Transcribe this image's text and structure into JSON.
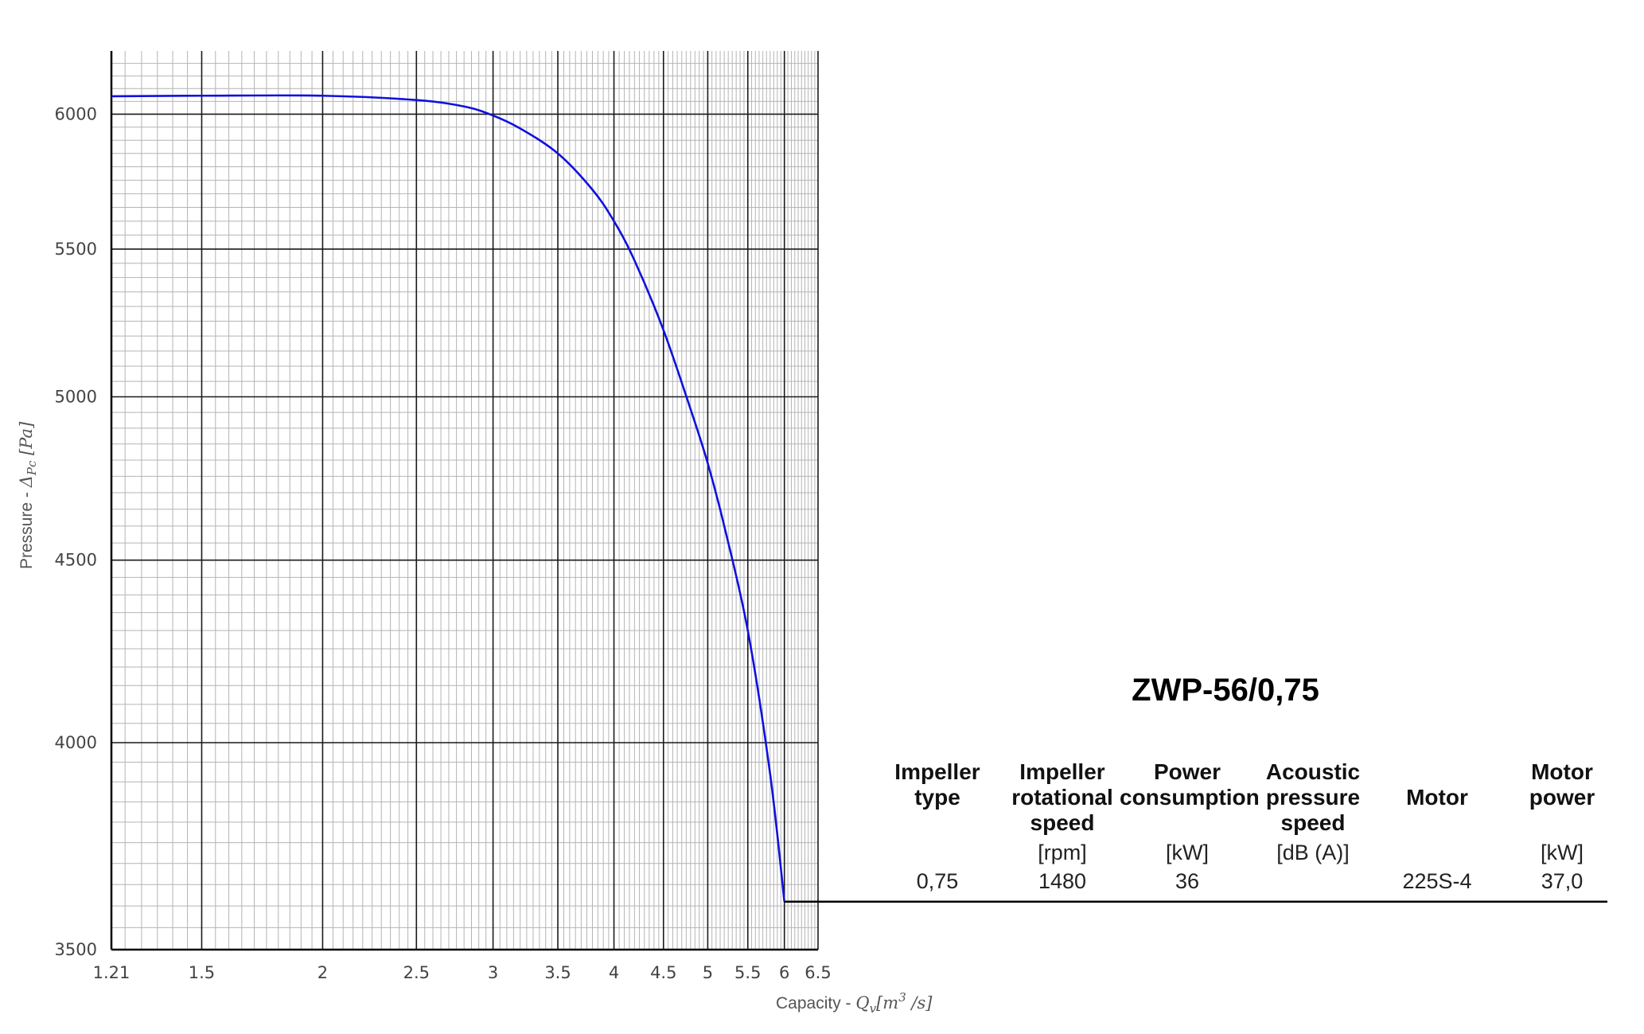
{
  "chart_data": {
    "type": "line",
    "xlabel_text": "Capacity - ",
    "xlabel_math": "Q",
    "xlabel_sub": "v",
    "xlabel_unit": "[m",
    "xlabel_sup": "3",
    "xlabel_unit_end": " /s]",
    "ylabel_text": "Pressure - ",
    "ylabel_math": "Δ",
    "ylabel_sub": "Pc",
    "ylabel_unit": " [Pa]",
    "x_scale": "log",
    "y_scale": "log",
    "xlim": [
      1.21,
      6.5
    ],
    "ylim": [
      3500,
      6250
    ],
    "x_ticks": [
      1.21,
      1.5,
      2,
      2.5,
      3,
      3.5,
      4,
      4.5,
      5,
      5.5,
      6,
      6.5
    ],
    "x_tick_labels": [
      "1.21",
      "1.5",
      "2",
      "2.5",
      "3",
      "3.5",
      "4",
      "4.5",
      "5",
      "5.5",
      "6",
      "6.5"
    ],
    "y_ticks": [
      3500,
      4000,
      4500,
      5000,
      5500,
      6000
    ],
    "y_tick_labels": [
      "3500",
      "4000",
      "4500",
      "5000",
      "5500",
      "6000"
    ],
    "grid": true,
    "series": [
      {
        "color": "#1010e0",
        "x": [
          1.21,
          1.5,
          2.0,
          2.5,
          2.8,
          3.0,
          3.2,
          3.5,
          3.8,
          4.0,
          4.2,
          4.5,
          4.8,
          5.0,
          5.2,
          5.5,
          5.8,
          6.0
        ],
        "y": [
          6070,
          6072,
          6072,
          6055,
          6030,
          5995,
          5945,
          5850,
          5715,
          5600,
          5460,
          5220,
          4960,
          4790,
          4600,
          4300,
          3920,
          3610
        ]
      }
    ],
    "operating_point": {
      "x": 6.0,
      "y": 3610
    }
  },
  "model": "ZWP-56/0,75",
  "specs": [
    {
      "head": [
        "Impeller",
        "type"
      ],
      "unit": "",
      "value": "0,75"
    },
    {
      "head": [
        "Impeller",
        "rotational",
        "speed"
      ],
      "unit": "[rpm]",
      "value": "1480"
    },
    {
      "head": [
        "Power",
        "consumption"
      ],
      "unit": "[kW]",
      "value": "36"
    },
    {
      "head": [
        "Acoustic",
        "pressure",
        "speed"
      ],
      "unit": "[dB (A)]",
      "value": ""
    },
    {
      "head": [
        "Motor"
      ],
      "unit": "",
      "value": "225S-4"
    },
    {
      "head": [
        "Motor",
        "power"
      ],
      "unit": "[kW]",
      "value": "37,0"
    }
  ]
}
